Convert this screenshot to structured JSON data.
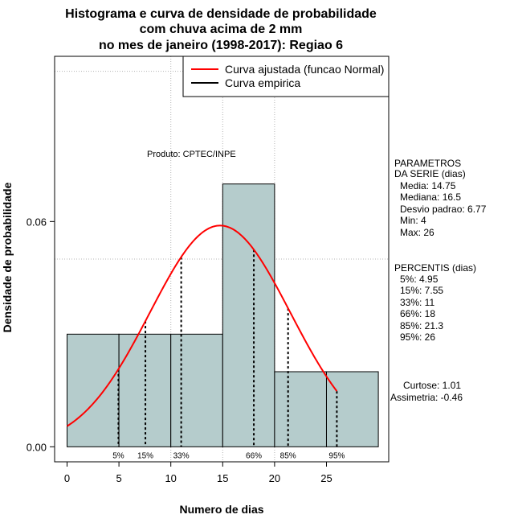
{
  "chart_data": {
    "type": "bar",
    "title_lines": [
      "Histograma e curva de densidade de probabilidade",
      "com chuva acima de 2 mm",
      "no mes de janeiro (1998-2017): Regiao 6"
    ],
    "xlabel": "Numero de dias",
    "ylabel": "Densidade de probabilidade",
    "xlim": [
      -1.2,
      31
    ],
    "ylim": [
      -0.004,
      0.104
    ],
    "x_ticks": [
      0,
      5,
      10,
      15,
      20,
      25
    ],
    "x_tick_labels": [
      "0",
      "5",
      "10",
      "15",
      "20",
      "25"
    ],
    "y_ticks": [
      0.0,
      0.06
    ],
    "y_tick_labels": [
      "0.00",
      "0.06"
    ],
    "grid": true,
    "grid_x": [
      10,
      15,
      20
    ],
    "grid_y": [
      0.05,
      0.1
    ],
    "bins": [
      {
        "start": 0,
        "end": 5,
        "density": 0.03
      },
      {
        "start": 5,
        "end": 10,
        "density": 0.03
      },
      {
        "start": 10,
        "end": 15,
        "density": 0.03
      },
      {
        "start": 15,
        "end": 20,
        "density": 0.07
      },
      {
        "start": 20,
        "end": 25,
        "density": 0.02
      },
      {
        "start": 25,
        "end": 30,
        "density": 0.02
      }
    ],
    "bar_color": "#b5cccc",
    "fitted_curve": {
      "label": "Curva ajustada (funcao Normal)",
      "color": "#ff0000",
      "mean": 14.75,
      "sd": 6.77,
      "x_range": [
        0,
        26
      ]
    },
    "empirical_label": "Curva empirica",
    "empirical_color": "#000000",
    "legend_position": "top-right",
    "percentiles": [
      {
        "label": "5%",
        "x": 4.95
      },
      {
        "label": "15%",
        "x": 7.55
      },
      {
        "label": "33%",
        "x": 11
      },
      {
        "label": "66%",
        "x": 18
      },
      {
        "label": "85%",
        "x": 21.3
      },
      {
        "label": "95%",
        "x": 26
      }
    ],
    "product_note": "Produto: CPTEC/INPE",
    "parametros": {
      "heading": [
        "PARAMETROS",
        "DA SERIE (dias)"
      ],
      "lines": [
        "Media: 14.75",
        "Mediana: 16.5",
        "Desvio padrao: 6.77",
        "Min: 4",
        "Max: 26"
      ]
    },
    "percentis": {
      "heading": "PERCENTIS (dias)",
      "lines": [
        "5%: 4.95",
        "15%: 7.55",
        "33%: 11",
        "66%: 18",
        "85%: 21.3",
        "95%: 26"
      ]
    },
    "shape": {
      "lines": [
        "Curtose: 1.01",
        "Assimetria: -0.46"
      ]
    }
  }
}
